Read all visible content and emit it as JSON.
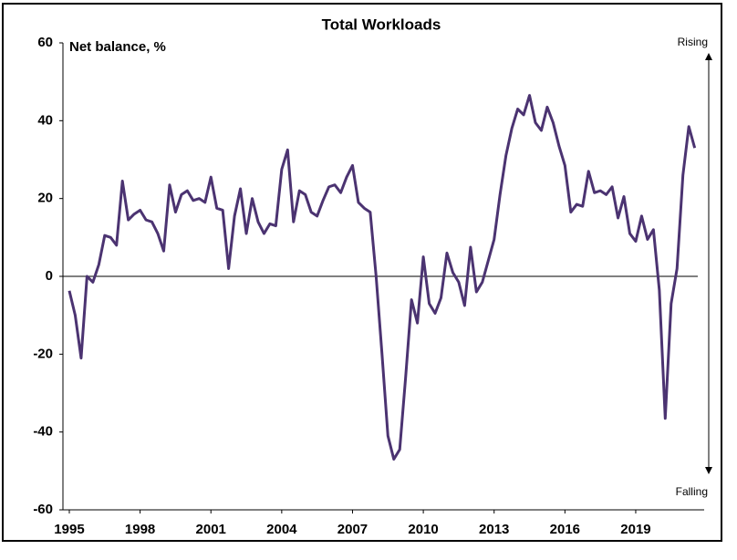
{
  "chart_data": {
    "type": "line",
    "title": "Total Workloads",
    "annotations": {
      "ylabel": "Net balance, %",
      "top": "Rising",
      "bottom": "Falling"
    },
    "x": [
      1995,
      1995.25,
      1995.5,
      1995.75,
      1996,
      1996.25,
      1996.5,
      1996.75,
      1997,
      1997.25,
      1997.5,
      1997.75,
      1998,
      1998.25,
      1998.5,
      1998.75,
      1999,
      1999.25,
      1999.5,
      1999.75,
      2000,
      2000.25,
      2000.5,
      2000.75,
      2001,
      2001.25,
      2001.5,
      2001.75,
      2002,
      2002.25,
      2002.5,
      2002.75,
      2003,
      2003.25,
      2003.5,
      2003.75,
      2004,
      2004.25,
      2004.5,
      2004.75,
      2005,
      2005.25,
      2005.5,
      2005.75,
      2006,
      2006.25,
      2006.5,
      2006.75,
      2007,
      2007.25,
      2007.5,
      2007.75,
      2008,
      2008.25,
      2008.5,
      2008.75,
      2009,
      2009.25,
      2009.5,
      2009.75,
      2010,
      2010.25,
      2010.5,
      2010.75,
      2011,
      2011.25,
      2011.5,
      2011.75,
      2012,
      2012.25,
      2012.5,
      2012.75,
      2013,
      2013.25,
      2013.5,
      2013.75,
      2014,
      2014.25,
      2014.5,
      2014.75,
      2015,
      2015.25,
      2015.5,
      2015.75,
      2016,
      2016.25,
      2016.5,
      2016.75,
      2017,
      2017.25,
      2017.5,
      2017.75,
      2018,
      2018.25,
      2018.5,
      2018.75,
      2019,
      2019.25,
      2019.5,
      2019.75,
      2020,
      2020.25,
      2020.5,
      2020.75,
      2021,
      2021.25,
      2021.5
    ],
    "series": [
      {
        "color": "#4b3371",
        "values": [
          -3.7,
          -10,
          -21,
          0,
          -1.5,
          3,
          10.5,
          10,
          8,
          24.5,
          14.5,
          16,
          17,
          14.5,
          14,
          11,
          6.5,
          23.5,
          16.5,
          21,
          22,
          19.5,
          20,
          19,
          25.5,
          17.5,
          17,
          2,
          15.5,
          22.5,
          11,
          20,
          14,
          11,
          13.5,
          13,
          27.5,
          32.5,
          14,
          22,
          21,
          16.5,
          15.5,
          19.5,
          23,
          23.5,
          21.5,
          25.5,
          28.5,
          19,
          17.5,
          16.5,
          0,
          -20,
          -41,
          -47,
          -44.5,
          -26,
          -6,
          -12,
          5,
          -7,
          -9.5,
          -5.5,
          6,
          1,
          -1.5,
          -7.5,
          7.5,
          -4,
          -1.5,
          4,
          9.5,
          21,
          31,
          38,
          43,
          41.5,
          46.5,
          39.5,
          37.5,
          43.5,
          39.5,
          33.5,
          28.5,
          16.5,
          18.5,
          18,
          27,
          21.5,
          22,
          21,
          23,
          15,
          20.5,
          11,
          9,
          15.5,
          9.5,
          12,
          -3.5,
          -36.5,
          -7,
          2,
          26,
          38.5,
          33
        ]
      }
    ],
    "xlim": [
      1994.73,
      2021.9
    ],
    "xticks": [
      1995,
      1998,
      2001,
      2004,
      2007,
      2010,
      2013,
      2016,
      2019
    ],
    "ylim": [
      -60,
      60
    ],
    "yticks": [
      -60,
      -40,
      -20,
      0,
      20,
      40,
      60
    ]
  }
}
